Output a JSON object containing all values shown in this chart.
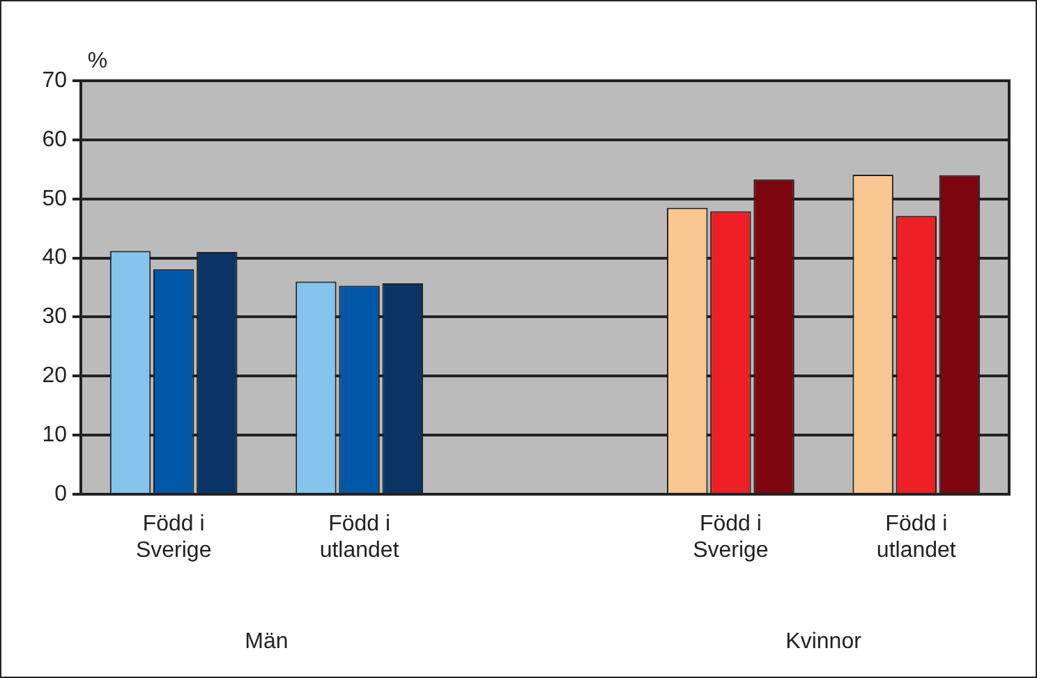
{
  "chart_data": {
    "type": "bar",
    "ylabel": "%",
    "categories": [
      "Född i\nSverige",
      "Född i\nutlandet",
      null,
      "Född i\nSverige",
      "Född i\nutlandet"
    ],
    "series": [
      {
        "colors": [
          "#85c4ec",
          "#85c4ec",
          "#85c4ec",
          "#f8c690",
          "#f8c690"
        ],
        "values": [
          41.2,
          36.0,
          null,
          48.5,
          54.1
        ]
      },
      {
        "colors": [
          "#0057a8",
          "#0057a8",
          "#0057a8",
          "#ee1f25",
          "#ee1f25"
        ],
        "values": [
          38.1,
          35.3,
          null,
          47.9,
          47.1
        ]
      },
      {
        "colors": [
          "#0b3466",
          "#0b3466",
          "#0b3466",
          "#7d0510",
          "#7d0510"
        ],
        "values": [
          41.0,
          35.7,
          null,
          53.3,
          54.0
        ]
      }
    ],
    "ylim": [
      0,
      70
    ],
    "yticks": [
      0,
      10,
      20,
      30,
      40,
      50,
      60,
      70
    ],
    "grid": "y",
    "legend": false,
    "annotations": [
      "Män",
      "Kvinnor"
    ]
  }
}
